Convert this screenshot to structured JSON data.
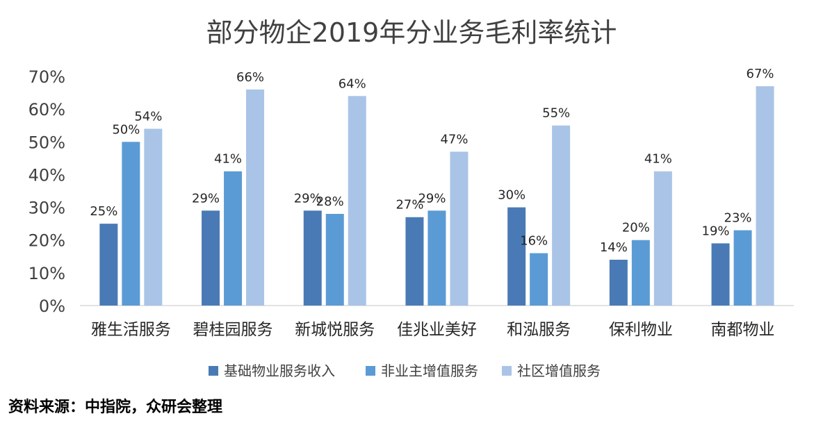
{
  "chart_data": {
    "type": "bar",
    "title": "部分物企2019年分业务毛利率统计",
    "categories": [
      "雅生活服务",
      "碧桂园服务",
      "新城悦服务",
      "佳兆业美好",
      "和泓服务",
      "保利物业",
      "南都物业"
    ],
    "series": [
      {
        "name": "基础物业服务收入",
        "values": [
          25,
          29,
          29,
          27,
          30,
          14,
          19
        ],
        "color": "#4a7ab5"
      },
      {
        "name": "非业主增值服务",
        "values": [
          50,
          41,
          28,
          29,
          16,
          20,
          23
        ],
        "color": "#5b9bd5"
      },
      {
        "name": "社区增值服务",
        "values": [
          54,
          66,
          64,
          47,
          55,
          41,
          67
        ],
        "color": "#a9c4e6"
      }
    ],
    "value_suffix": "%",
    "ylim": [
      0,
      70
    ],
    "yticks": [
      "0%",
      "10%",
      "20%",
      "30%",
      "40%",
      "50%",
      "60%",
      "70%"
    ],
    "grid": false,
    "legend_position": "bottom"
  },
  "source_text": "资料来源：中指院，众研会整理"
}
